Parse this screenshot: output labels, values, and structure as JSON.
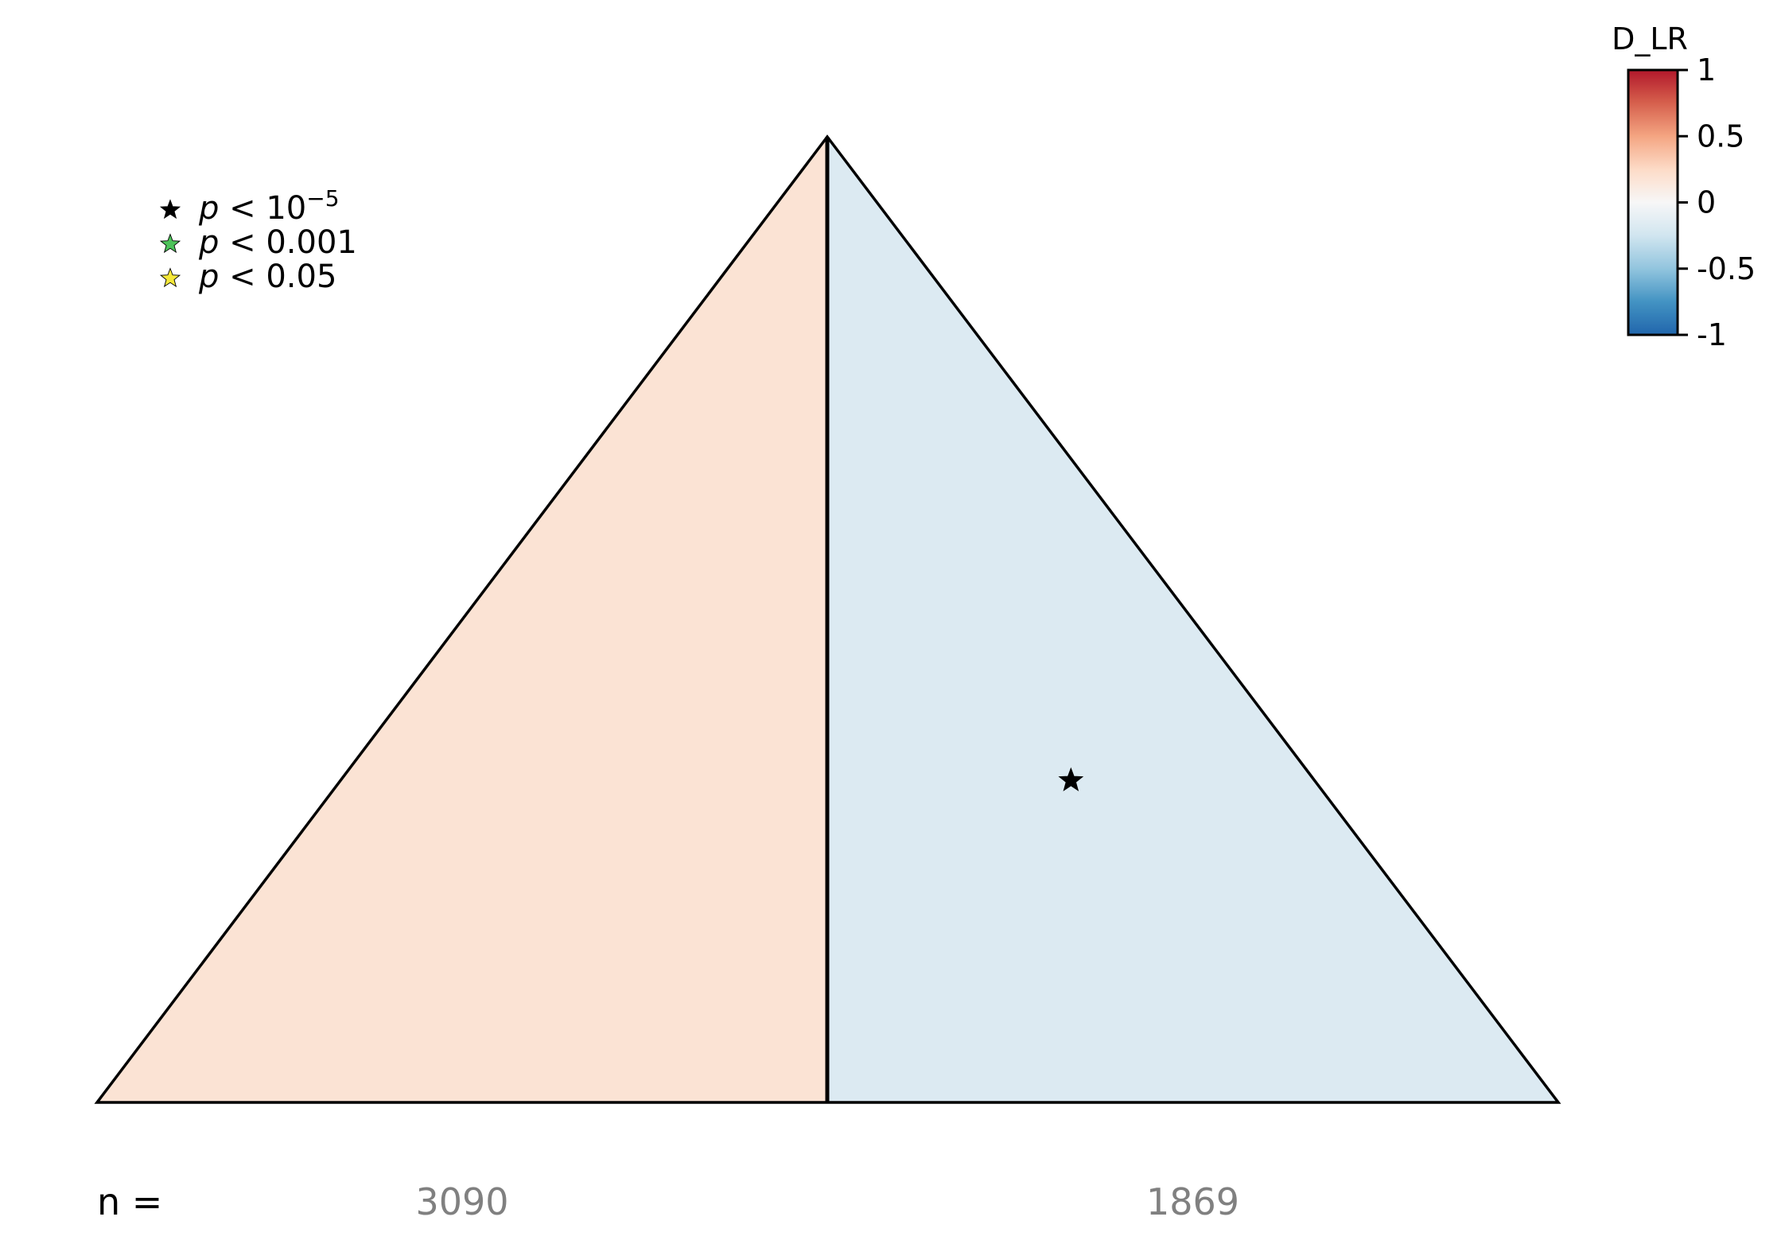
{
  "chart_data": {
    "type": "heatmap",
    "subtype": "triangle-partition",
    "title": "",
    "regions": [
      {
        "name": "left",
        "D_LR": 0.18,
        "n": "3090",
        "significance": "none"
      },
      {
        "name": "right",
        "D_LR": -0.18,
        "n": "1869",
        "significance": "p < 10^-5"
      }
    ],
    "n_label": "n =",
    "legend": {
      "placement": "top-left",
      "entries": [
        {
          "var": "p",
          "op": "<",
          "value": "10",
          "exponent": "−5",
          "star_color": "#000000"
        },
        {
          "var": "p",
          "op": "<",
          "value": "0.001",
          "exponent": "",
          "star_color": "#4dc35a"
        },
        {
          "var": "p",
          "op": "<",
          "value": "0.05",
          "exponent": "",
          "star_color": "#f5e83a"
        }
      ]
    },
    "colorbar": {
      "title": "D_LR",
      "placement": "top-right",
      "range": [
        -1,
        1
      ],
      "ticks": [
        {
          "value": 1,
          "label": "1"
        },
        {
          "value": 0.5,
          "label": "0.5"
        },
        {
          "value": 0,
          "label": "0"
        },
        {
          "value": -0.5,
          "label": "-0.5"
        },
        {
          "value": -1,
          "label": "-1"
        }
      ],
      "colormap": [
        "#2166ac",
        "#4393c3",
        "#92c5de",
        "#d1e5f0",
        "#f7f7f7",
        "#fddbc7",
        "#f4a582",
        "#d6604d",
        "#b2182b"
      ]
    }
  }
}
